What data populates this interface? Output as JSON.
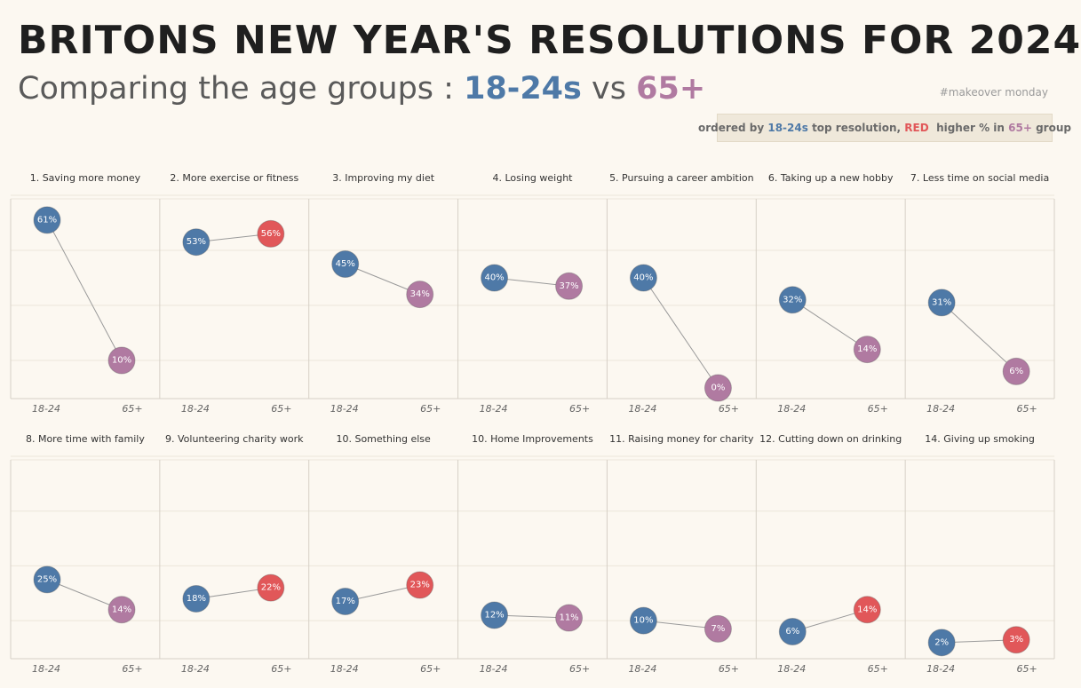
{
  "header": {
    "title": "BRITONS NEW YEAR'S RESOLUTIONS FOR 2024",
    "subtitle_prefix": "Comparing the age groups :",
    "subtitle_group1": "18-24s",
    "subtitle_vs": "vs",
    "subtitle_group2": "65+",
    "tag": "#makeover monday"
  },
  "note": {
    "prefix": "ordered by",
    "group1": "18-24s",
    "middle": "top resolution,",
    "red_word": "RED",
    "middle2": "higher % in",
    "group2": "65+",
    "suffix": "group"
  },
  "colors": {
    "group1": "#4e79a7",
    "group2": "#b07aa1",
    "higher": "#e15759",
    "background": "#fcf8f1",
    "line": "#9a9a9a",
    "grid": "#ece6da",
    "divider": "#d6d0c6"
  },
  "chart_data": {
    "type": "slope",
    "categories": [
      "18-24",
      "65+"
    ],
    "value_suffix": "%",
    "ylim": [
      0,
      70
    ],
    "panels": [
      {
        "title": "1. Saving more money",
        "values": [
          61,
          10
        ]
      },
      {
        "title": "2. More exercise or fitness",
        "values": [
          53,
          56
        ]
      },
      {
        "title": "3. Improving my diet",
        "values": [
          45,
          34
        ]
      },
      {
        "title": "4. Losing weight",
        "values": [
          40,
          37
        ]
      },
      {
        "title": "5. Pursuing a career ambition",
        "values": [
          40,
          0
        ]
      },
      {
        "title": "6. Taking up a new hobby",
        "values": [
          32,
          14
        ]
      },
      {
        "title": "7. Less time on social media",
        "values": [
          31,
          6
        ]
      },
      {
        "title": "8. More time with family",
        "values": [
          25,
          14
        ]
      },
      {
        "title": "9. Volunteering charity work",
        "values": [
          18,
          22
        ]
      },
      {
        "title": "10. Something else",
        "values": [
          17,
          23
        ]
      },
      {
        "title": "10. Home Improvements",
        "values": [
          12,
          11
        ]
      },
      {
        "title": "11. Raising money for charity",
        "values": [
          10,
          7
        ]
      },
      {
        "title": "12. Cutting down on drinking",
        "values": [
          6,
          14
        ]
      },
      {
        "title": "14. Giving up smoking",
        "values": [
          2,
          3
        ]
      }
    ]
  }
}
